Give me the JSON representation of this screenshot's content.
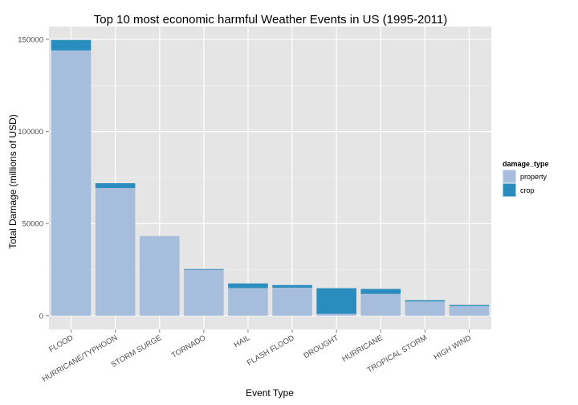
{
  "chart_data": {
    "type": "bar",
    "stacked": true,
    "title": "Top 10 most economic harmful Weather Events in US (1995-2011)",
    "xlabel": "Event Type",
    "ylabel": "Total Damage (millions of USD)",
    "categories": [
      "FLOOD",
      "HURRICANE/TYPHOON",
      "STORM SURGE",
      "TORNADO",
      "HAIL",
      "FLASH FLOOD",
      "DROUGHT",
      "HURRICANE",
      "TROPICAL STORM",
      "HIGH WIND"
    ],
    "series": [
      {
        "name": "property",
        "color": "#a6bddb",
        "values": [
          144000,
          69300,
          43200,
          24900,
          15000,
          15200,
          1000,
          11800,
          7700,
          5200
        ]
      },
      {
        "name": "crop",
        "color": "#2b8cbe",
        "values": [
          5700,
          2600,
          0,
          400,
          2500,
          1400,
          13900,
          2700,
          700,
          600
        ]
      }
    ],
    "ylim": [
      -7500,
      157000
    ],
    "yticks": [
      0,
      50000,
      100000,
      150000
    ],
    "ytick_labels": [
      "0",
      "50000",
      "100000",
      "150000"
    ],
    "grid": true,
    "legend": {
      "title": "damage_type",
      "position": "right"
    },
    "panel_background": "#e5e5e5",
    "grid_color": "#ffffff"
  }
}
